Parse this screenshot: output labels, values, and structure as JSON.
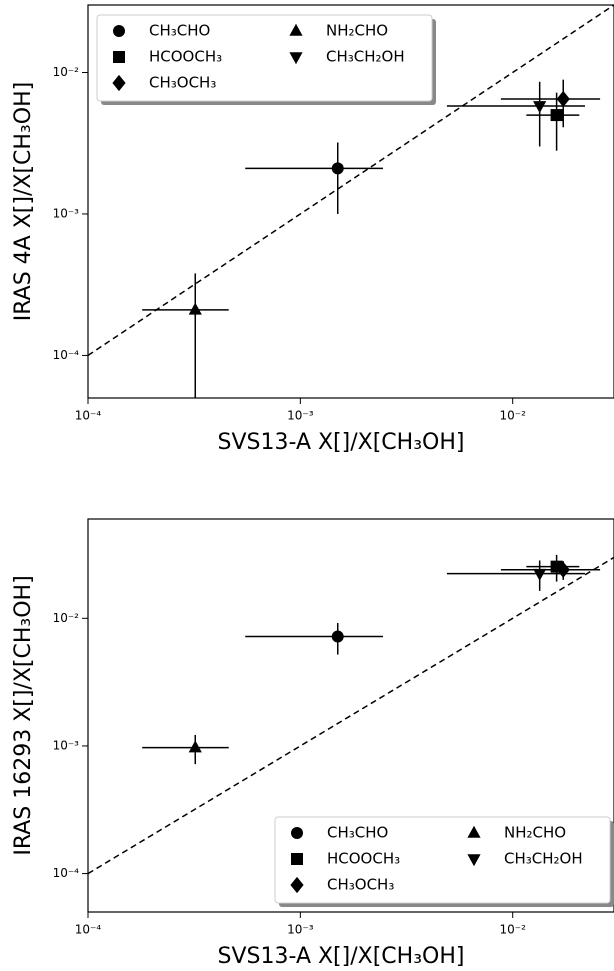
{
  "chart_data": [
    {
      "type": "scatter",
      "xlabel": "SVS13-A X[]/X[CH₃OH]",
      "ylabel": "IRAS 4A X[]/X[CH₃OH]",
      "xscale": "log",
      "yscale": "log",
      "legend": "upper left",
      "identity_line": true,
      "xlim": [
        0.0001,
        0.03
      ],
      "ylim": [
        5e-05,
        0.03
      ],
      "xticks": [
        {
          "value": 0.0001,
          "label": "10⁻⁴"
        },
        {
          "value": 0.001,
          "label": "10⁻³"
        },
        {
          "value": 0.01,
          "label": "10⁻²"
        }
      ],
      "yticks": [
        {
          "value": 0.0001,
          "label": "10⁻⁴"
        },
        {
          "value": 0.001,
          "label": "10⁻³"
        },
        {
          "value": 0.01,
          "label": "10⁻²"
        }
      ],
      "series": [
        {
          "name": "CH₃CHO",
          "color": "#000000",
          "marker": "circle",
          "x": [
            0.0015
          ],
          "xerr": [
            0.00095
          ],
          "values": [
            0.0021
          ],
          "yerr": [
            0.0011
          ]
        },
        {
          "name": "HCOOCH₃",
          "color": "#000000",
          "marker": "square",
          "x": [
            0.0161
          ],
          "xerr": [
            0.0045
          ],
          "values": [
            0.005
          ],
          "yerr": [
            0.0022
          ]
        },
        {
          "name": "CH₃OCH₃",
          "color": "#000000",
          "marker": "diamond",
          "x": [
            0.0173
          ],
          "xerr": [
            0.0085
          ],
          "values": [
            0.0065
          ],
          "yerr": [
            0.0024
          ]
        },
        {
          "name": "NH₂CHO",
          "color": "#000000",
          "marker": "triangle-up",
          "x": [
            0.00032
          ],
          "xerr": [
            0.00014
          ],
          "values": [
            0.00021
          ],
          "yerr": [
            0.00017
          ]
        },
        {
          "name": "CH₃CH₂OH",
          "color": "#000000",
          "marker": "triangle-down",
          "x": [
            0.0134
          ],
          "xerr": [
            0.0085
          ],
          "values": [
            0.0058
          ],
          "yerr": [
            0.0028
          ]
        }
      ]
    },
    {
      "type": "scatter",
      "xlabel": "SVS13-A X[]/X[CH₃OH]",
      "ylabel": "IRAS 16293 X[]/X[CH₃OH]",
      "xscale": "log",
      "yscale": "log",
      "legend": "lower right",
      "identity_line": true,
      "xlim": [
        0.0001,
        0.03
      ],
      "ylim": [
        5e-05,
        0.06
      ],
      "xticks": [
        {
          "value": 0.0001,
          "label": "10⁻⁴"
        },
        {
          "value": 0.001,
          "label": "10⁻³"
        },
        {
          "value": 0.01,
          "label": "10⁻²"
        }
      ],
      "yticks": [
        {
          "value": 0.0001,
          "label": "10⁻⁴"
        },
        {
          "value": 0.001,
          "label": "10⁻³"
        },
        {
          "value": 0.01,
          "label": "10⁻²"
        }
      ],
      "series": [
        {
          "name": "CH₃CHO",
          "color": "#000000",
          "marker": "circle",
          "x": [
            0.0015
          ],
          "xerr": [
            0.00095
          ],
          "values": [
            0.0072
          ],
          "yerr": [
            0.002
          ]
        },
        {
          "name": "HCOOCH₃",
          "color": "#000000",
          "marker": "square",
          "x": [
            0.0161
          ],
          "xerr": [
            0.0045
          ],
          "values": [
            0.0254
          ],
          "yerr": [
            0.006
          ]
        },
        {
          "name": "CH₃OCH₃",
          "color": "#000000",
          "marker": "diamond",
          "x": [
            0.0173
          ],
          "xerr": [
            0.0085
          ],
          "values": [
            0.024
          ],
          "yerr": [
            0.004
          ]
        },
        {
          "name": "NH₂CHO",
          "color": "#000000",
          "marker": "triangle-up",
          "x": [
            0.00032
          ],
          "xerr": [
            0.00014
          ],
          "values": [
            0.00097
          ],
          "yerr": [
            0.00025
          ]
        },
        {
          "name": "CH₃CH₂OH",
          "color": "#000000",
          "marker": "triangle-down",
          "x": [
            0.0134
          ],
          "xerr": [
            0.0085
          ],
          "values": [
            0.0224
          ],
          "yerr": [
            0.006
          ]
        }
      ]
    }
  ]
}
